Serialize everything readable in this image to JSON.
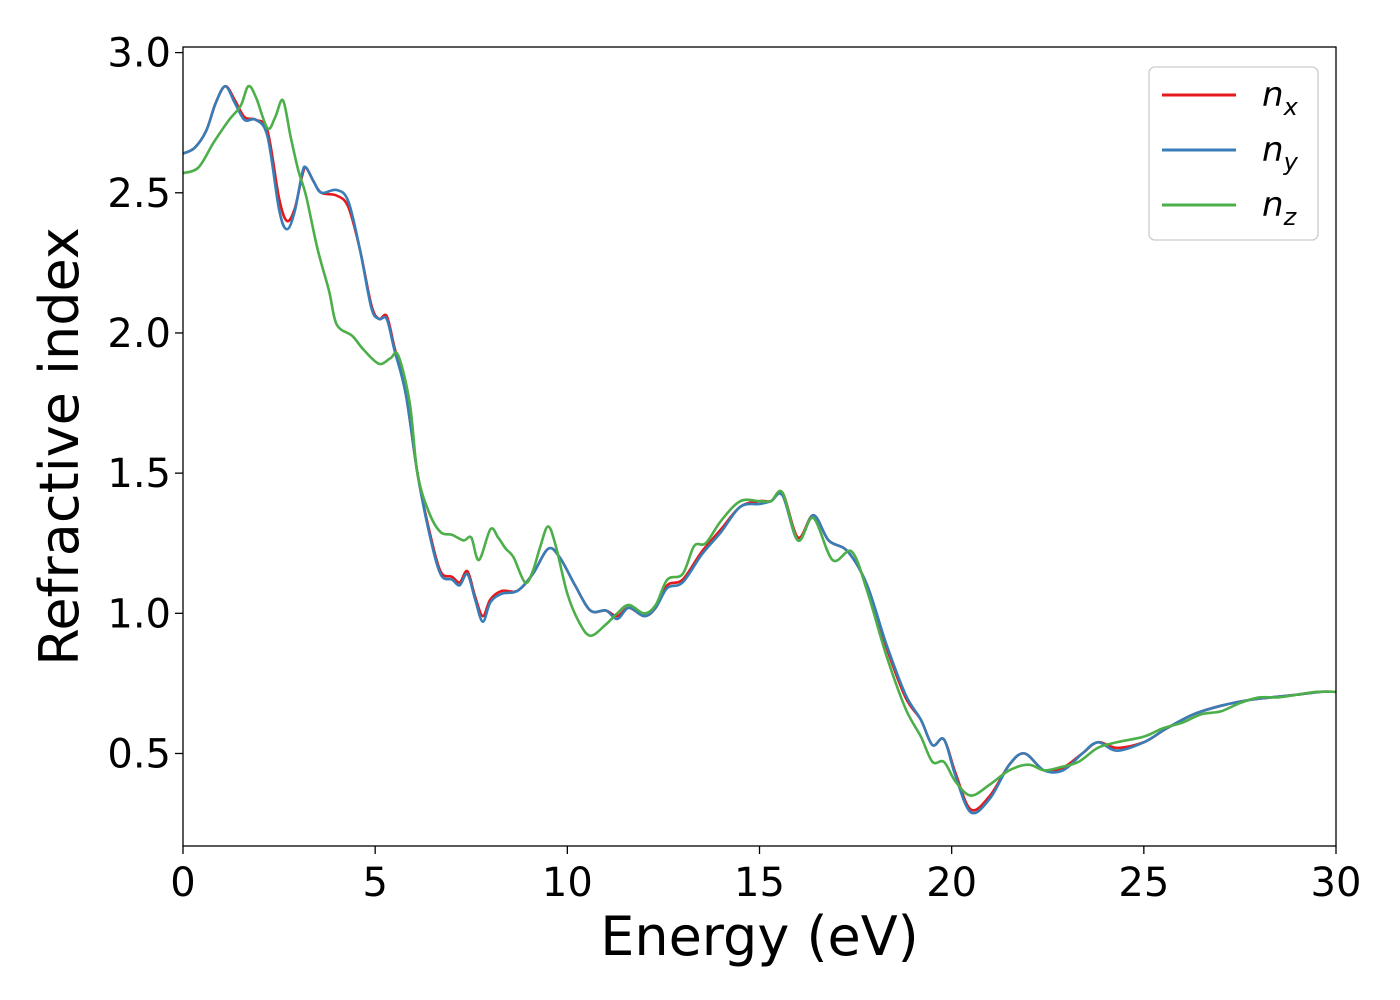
{
  "chart_data": {
    "type": "line",
    "xlabel": "Energy (eV)",
    "ylabel": "Refractive index",
    "xlim": [
      0,
      30
    ],
    "ylim": [
      0.17,
      3.02
    ],
    "xticks": [
      0,
      5,
      10,
      15,
      20,
      25,
      30
    ],
    "xtick_labels": [
      "0",
      "5",
      "10",
      "15",
      "20",
      "25",
      "30"
    ],
    "yticks": [
      0.5,
      1.0,
      1.5,
      2.0,
      2.5,
      3.0
    ],
    "ytick_labels": [
      "0.5",
      "1.0",
      "1.5",
      "2.0",
      "2.5",
      "3.0"
    ],
    "grid": false,
    "legend_position": "top-right",
    "series": [
      {
        "name": "n",
        "subscript": "x",
        "color": "#e41a1c",
        "points": [
          [
            0,
            2.64
          ],
          [
            0.3,
            2.66
          ],
          [
            0.6,
            2.72
          ],
          [
            0.85,
            2.82
          ],
          [
            1.1,
            2.88
          ],
          [
            1.35,
            2.83
          ],
          [
            1.6,
            2.77
          ],
          [
            1.9,
            2.76
          ],
          [
            2.2,
            2.72
          ],
          [
            2.5,
            2.48
          ],
          [
            2.7,
            2.4
          ],
          [
            2.9,
            2.44
          ],
          [
            3.1,
            2.56
          ],
          [
            3.2,
            2.59
          ],
          [
            3.4,
            2.54
          ],
          [
            3.6,
            2.5
          ],
          [
            4.0,
            2.49
          ],
          [
            4.3,
            2.45
          ],
          [
            4.6,
            2.3
          ],
          [
            4.9,
            2.1
          ],
          [
            5.1,
            2.05
          ],
          [
            5.3,
            2.06
          ],
          [
            5.5,
            1.95
          ],
          [
            5.8,
            1.78
          ],
          [
            6.1,
            1.5
          ],
          [
            6.4,
            1.3
          ],
          [
            6.7,
            1.15
          ],
          [
            7.0,
            1.13
          ],
          [
            7.2,
            1.11
          ],
          [
            7.4,
            1.15
          ],
          [
            7.6,
            1.06
          ],
          [
            7.8,
            0.99
          ],
          [
            8.0,
            1.05
          ],
          [
            8.3,
            1.08
          ],
          [
            8.7,
            1.08
          ],
          [
            9.1,
            1.14
          ],
          [
            9.5,
            1.23
          ],
          [
            9.8,
            1.2
          ],
          [
            10.2,
            1.1
          ],
          [
            10.6,
            1.01
          ],
          [
            11.0,
            1.01
          ],
          [
            11.3,
            0.99
          ],
          [
            11.6,
            1.02
          ],
          [
            12.0,
            0.99
          ],
          [
            12.3,
            1.02
          ],
          [
            12.6,
            1.1
          ],
          [
            13.0,
            1.12
          ],
          [
            13.5,
            1.22
          ],
          [
            14.0,
            1.3
          ],
          [
            14.5,
            1.38
          ],
          [
            15.0,
            1.4
          ],
          [
            15.3,
            1.4
          ],
          [
            15.6,
            1.43
          ],
          [
            16.0,
            1.27
          ],
          [
            16.4,
            1.35
          ],
          [
            16.8,
            1.26
          ],
          [
            17.3,
            1.22
          ],
          [
            17.8,
            1.1
          ],
          [
            18.3,
            0.88
          ],
          [
            18.8,
            0.7
          ],
          [
            19.2,
            0.62
          ],
          [
            19.5,
            0.53
          ],
          [
            19.8,
            0.55
          ],
          [
            20.1,
            0.43
          ],
          [
            20.5,
            0.3
          ],
          [
            21.0,
            0.35
          ],
          [
            21.5,
            0.46
          ],
          [
            21.9,
            0.5
          ],
          [
            22.4,
            0.44
          ],
          [
            22.9,
            0.45
          ],
          [
            23.4,
            0.5
          ],
          [
            23.8,
            0.54
          ],
          [
            24.3,
            0.52
          ],
          [
            25.0,
            0.54
          ],
          [
            25.6,
            0.59
          ],
          [
            26.3,
            0.64
          ],
          [
            27.0,
            0.67
          ],
          [
            27.7,
            0.69
          ],
          [
            28.3,
            0.7
          ],
          [
            29.0,
            0.71
          ],
          [
            29.6,
            0.72
          ],
          [
            30.0,
            0.72
          ]
        ]
      },
      {
        "name": "n",
        "subscript": "y",
        "color": "#377eb8",
        "points": [
          [
            0,
            2.64
          ],
          [
            0.3,
            2.66
          ],
          [
            0.6,
            2.72
          ],
          [
            0.85,
            2.82
          ],
          [
            1.1,
            2.88
          ],
          [
            1.35,
            2.82
          ],
          [
            1.6,
            2.76
          ],
          [
            1.9,
            2.76
          ],
          [
            2.2,
            2.7
          ],
          [
            2.5,
            2.44
          ],
          [
            2.7,
            2.37
          ],
          [
            2.9,
            2.43
          ],
          [
            3.1,
            2.57
          ],
          [
            3.2,
            2.59
          ],
          [
            3.4,
            2.54
          ],
          [
            3.6,
            2.5
          ],
          [
            4.0,
            2.51
          ],
          [
            4.3,
            2.47
          ],
          [
            4.6,
            2.3
          ],
          [
            4.9,
            2.09
          ],
          [
            5.1,
            2.05
          ],
          [
            5.3,
            2.05
          ],
          [
            5.5,
            1.94
          ],
          [
            5.8,
            1.78
          ],
          [
            6.1,
            1.5
          ],
          [
            6.4,
            1.29
          ],
          [
            6.7,
            1.14
          ],
          [
            7.0,
            1.12
          ],
          [
            7.2,
            1.1
          ],
          [
            7.4,
            1.14
          ],
          [
            7.6,
            1.05
          ],
          [
            7.8,
            0.97
          ],
          [
            8.0,
            1.04
          ],
          [
            8.3,
            1.07
          ],
          [
            8.7,
            1.08
          ],
          [
            9.1,
            1.14
          ],
          [
            9.5,
            1.23
          ],
          [
            9.8,
            1.2
          ],
          [
            10.2,
            1.1
          ],
          [
            10.6,
            1.01
          ],
          [
            11.0,
            1.01
          ],
          [
            11.3,
            0.98
          ],
          [
            11.6,
            1.02
          ],
          [
            12.0,
            0.99
          ],
          [
            12.3,
            1.02
          ],
          [
            12.6,
            1.09
          ],
          [
            13.0,
            1.11
          ],
          [
            13.5,
            1.21
          ],
          [
            14.0,
            1.29
          ],
          [
            14.5,
            1.38
          ],
          [
            15.0,
            1.39
          ],
          [
            15.3,
            1.4
          ],
          [
            15.6,
            1.42
          ],
          [
            16.0,
            1.26
          ],
          [
            16.4,
            1.35
          ],
          [
            16.8,
            1.26
          ],
          [
            17.3,
            1.22
          ],
          [
            17.8,
            1.1
          ],
          [
            18.3,
            0.89
          ],
          [
            18.8,
            0.71
          ],
          [
            19.2,
            0.62
          ],
          [
            19.5,
            0.53
          ],
          [
            19.8,
            0.55
          ],
          [
            20.1,
            0.42
          ],
          [
            20.5,
            0.29
          ],
          [
            21.0,
            0.34
          ],
          [
            21.5,
            0.46
          ],
          [
            21.9,
            0.5
          ],
          [
            22.4,
            0.44
          ],
          [
            22.9,
            0.44
          ],
          [
            23.4,
            0.5
          ],
          [
            23.8,
            0.54
          ],
          [
            24.3,
            0.51
          ],
          [
            25.0,
            0.54
          ],
          [
            25.6,
            0.59
          ],
          [
            26.3,
            0.64
          ],
          [
            27.0,
            0.67
          ],
          [
            27.7,
            0.69
          ],
          [
            28.3,
            0.7
          ],
          [
            29.0,
            0.71
          ],
          [
            29.6,
            0.72
          ],
          [
            30.0,
            0.72
          ]
        ]
      },
      {
        "name": "n",
        "subscript": "z",
        "color": "#4daf4a",
        "points": [
          [
            0,
            2.57
          ],
          [
            0.4,
            2.59
          ],
          [
            0.8,
            2.68
          ],
          [
            1.2,
            2.76
          ],
          [
            1.5,
            2.81
          ],
          [
            1.7,
            2.88
          ],
          [
            1.9,
            2.84
          ],
          [
            2.2,
            2.73
          ],
          [
            2.4,
            2.77
          ],
          [
            2.6,
            2.83
          ],
          [
            2.8,
            2.7
          ],
          [
            3.0,
            2.58
          ],
          [
            3.2,
            2.49
          ],
          [
            3.5,
            2.3
          ],
          [
            3.8,
            2.15
          ],
          [
            4.0,
            2.03
          ],
          [
            4.4,
            1.99
          ],
          [
            4.7,
            1.94
          ],
          [
            5.1,
            1.89
          ],
          [
            5.4,
            1.91
          ],
          [
            5.6,
            1.92
          ],
          [
            5.9,
            1.75
          ],
          [
            6.1,
            1.5
          ],
          [
            6.4,
            1.36
          ],
          [
            6.7,
            1.29
          ],
          [
            7.0,
            1.28
          ],
          [
            7.3,
            1.26
          ],
          [
            7.5,
            1.27
          ],
          [
            7.7,
            1.19
          ],
          [
            8.0,
            1.3
          ],
          [
            8.2,
            1.27
          ],
          [
            8.4,
            1.23
          ],
          [
            8.6,
            1.2
          ],
          [
            8.9,
            1.11
          ],
          [
            9.1,
            1.15
          ],
          [
            9.3,
            1.24
          ],
          [
            9.5,
            1.31
          ],
          [
            9.7,
            1.24
          ],
          [
            10.0,
            1.07
          ],
          [
            10.3,
            0.97
          ],
          [
            10.6,
            0.92
          ],
          [
            11.0,
            0.96
          ],
          [
            11.3,
            1.0
          ],
          [
            11.6,
            1.03
          ],
          [
            12.0,
            1.0
          ],
          [
            12.3,
            1.03
          ],
          [
            12.6,
            1.12
          ],
          [
            13.0,
            1.14
          ],
          [
            13.3,
            1.24
          ],
          [
            13.6,
            1.25
          ],
          [
            14.0,
            1.33
          ],
          [
            14.5,
            1.4
          ],
          [
            15.0,
            1.4
          ],
          [
            15.3,
            1.4
          ],
          [
            15.6,
            1.43
          ],
          [
            16.0,
            1.26
          ],
          [
            16.4,
            1.34
          ],
          [
            16.9,
            1.19
          ],
          [
            17.4,
            1.22
          ],
          [
            17.8,
            1.08
          ],
          [
            18.3,
            0.85
          ],
          [
            18.8,
            0.66
          ],
          [
            19.2,
            0.56
          ],
          [
            19.5,
            0.47
          ],
          [
            19.8,
            0.47
          ],
          [
            20.1,
            0.4
          ],
          [
            20.5,
            0.35
          ],
          [
            21.0,
            0.39
          ],
          [
            21.5,
            0.44
          ],
          [
            22.0,
            0.46
          ],
          [
            22.4,
            0.44
          ],
          [
            22.8,
            0.45
          ],
          [
            23.3,
            0.47
          ],
          [
            23.8,
            0.52
          ],
          [
            24.3,
            0.54
          ],
          [
            25.0,
            0.56
          ],
          [
            25.5,
            0.59
          ],
          [
            26.0,
            0.61
          ],
          [
            26.5,
            0.64
          ],
          [
            27.0,
            0.65
          ],
          [
            27.5,
            0.68
          ],
          [
            28.0,
            0.7
          ],
          [
            28.5,
            0.7
          ],
          [
            29.0,
            0.71
          ],
          [
            29.5,
            0.72
          ],
          [
            30.0,
            0.72
          ]
        ]
      }
    ]
  }
}
